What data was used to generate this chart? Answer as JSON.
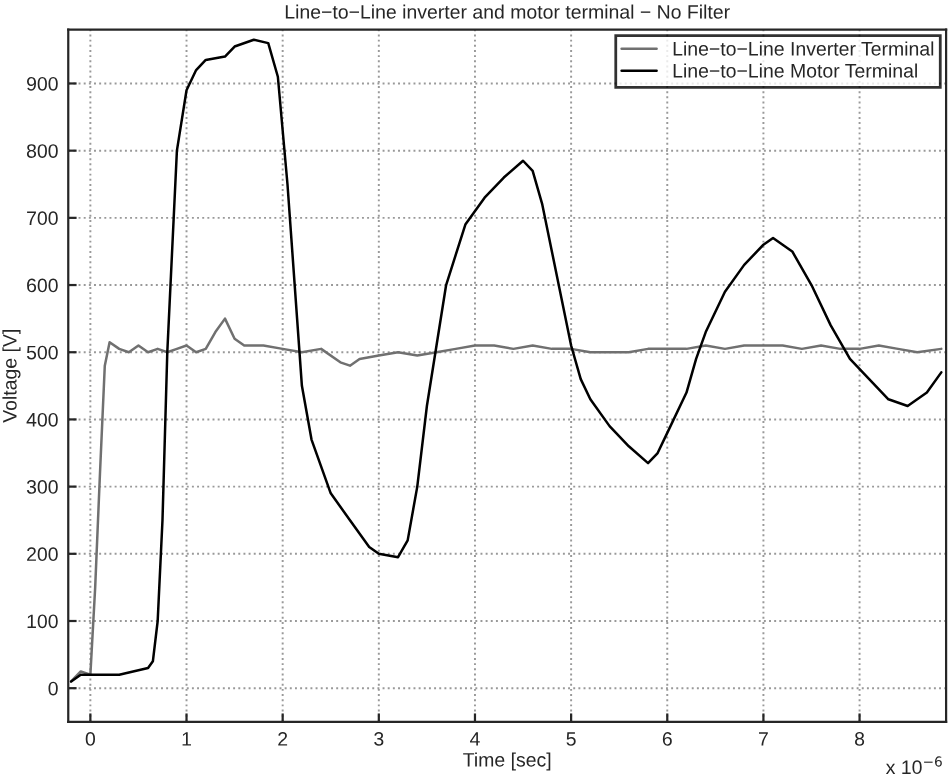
{
  "chart_data": {
    "type": "line",
    "title": "Line−to−Line inverter and motor terminal − No Filter",
    "xlabel": "Time [sec]",
    "ylabel": "Voltage [V]",
    "annotations": [
      "x 10$^{−6}$"
    ],
    "series": [
      {
        "name": "Line−to−Line Inverter Terminal",
        "color": "#707070",
        "x": [
          -0.2,
          -0.1,
          0.0,
          0.05,
          0.1,
          0.15,
          0.2,
          0.3,
          0.4,
          0.5,
          0.6,
          0.7,
          0.8,
          0.9,
          1.0,
          1.1,
          1.2,
          1.3,
          1.4,
          1.5,
          1.6,
          1.8,
          2.0,
          2.2,
          2.4,
          2.6,
          2.7,
          2.8,
          3.0,
          3.2,
          3.4,
          3.6,
          3.8,
          4.0,
          4.2,
          4.4,
          4.6,
          4.8,
          5.0,
          5.2,
          5.4,
          5.6,
          5.8,
          6.0,
          6.2,
          6.4,
          6.6,
          6.8,
          7.0,
          7.2,
          7.4,
          7.6,
          7.8,
          8.0,
          8.2,
          8.4,
          8.6,
          8.85
        ],
        "values": [
          10,
          25,
          20,
          150,
          320,
          480,
          515,
          505,
          500,
          510,
          500,
          505,
          500,
          505,
          510,
          500,
          505,
          530,
          550,
          520,
          510,
          510,
          505,
          500,
          505,
          485,
          480,
          490,
          495,
          500,
          495,
          500,
          505,
          510,
          510,
          505,
          510,
          505,
          505,
          500,
          500,
          500,
          505,
          505,
          505,
          510,
          505,
          510,
          510,
          510,
          505,
          510,
          505,
          505,
          510,
          505,
          500,
          505
        ]
      },
      {
        "name": "Line−to−Line Motor Terminal",
        "color": "#000000",
        "x": [
          -0.2,
          -0.1,
          0.0,
          0.3,
          0.6,
          0.65,
          0.7,
          0.75,
          0.8,
          0.9,
          1.0,
          1.1,
          1.2,
          1.4,
          1.5,
          1.7,
          1.85,
          1.95,
          2.05,
          2.15,
          2.2,
          2.3,
          2.5,
          2.7,
          2.9,
          3.0,
          3.2,
          3.3,
          3.4,
          3.5,
          3.6,
          3.7,
          3.9,
          4.1,
          4.3,
          4.5,
          4.6,
          4.7,
          4.8,
          4.9,
          5.0,
          5.1,
          5.2,
          5.4,
          5.6,
          5.8,
          5.9,
          6.0,
          6.2,
          6.3,
          6.4,
          6.6,
          6.8,
          7.0,
          7.1,
          7.3,
          7.5,
          7.7,
          7.9,
          8.1,
          8.3,
          8.5,
          8.7,
          8.85
        ],
        "values": [
          10,
          20,
          20,
          20,
          30,
          40,
          100,
          250,
          500,
          800,
          890,
          920,
          935,
          940,
          955,
          965,
          960,
          910,
          750,
          550,
          450,
          370,
          290,
          250,
          210,
          200,
          195,
          220,
          300,
          420,
          510,
          600,
          690,
          730,
          760,
          785,
          770,
          720,
          650,
          580,
          510,
          460,
          430,
          390,
          360,
          335,
          350,
          380,
          440,
          490,
          530,
          590,
          630,
          660,
          670,
          650,
          600,
          540,
          490,
          460,
          430,
          420,
          440,
          470
        ]
      }
    ],
    "xlim": [
      -0.23,
      8.9
    ],
    "xticks": [
      0,
      1,
      2,
      3,
      4,
      5,
      6,
      7,
      8
    ],
    "ylim": [
      -50,
      980
    ],
    "yticks": [
      0,
      100,
      200,
      300,
      400,
      500,
      600,
      700,
      800,
      900
    ],
    "grid": true,
    "legend": "top right",
    "line_style": "solid",
    "marker": "none"
  }
}
